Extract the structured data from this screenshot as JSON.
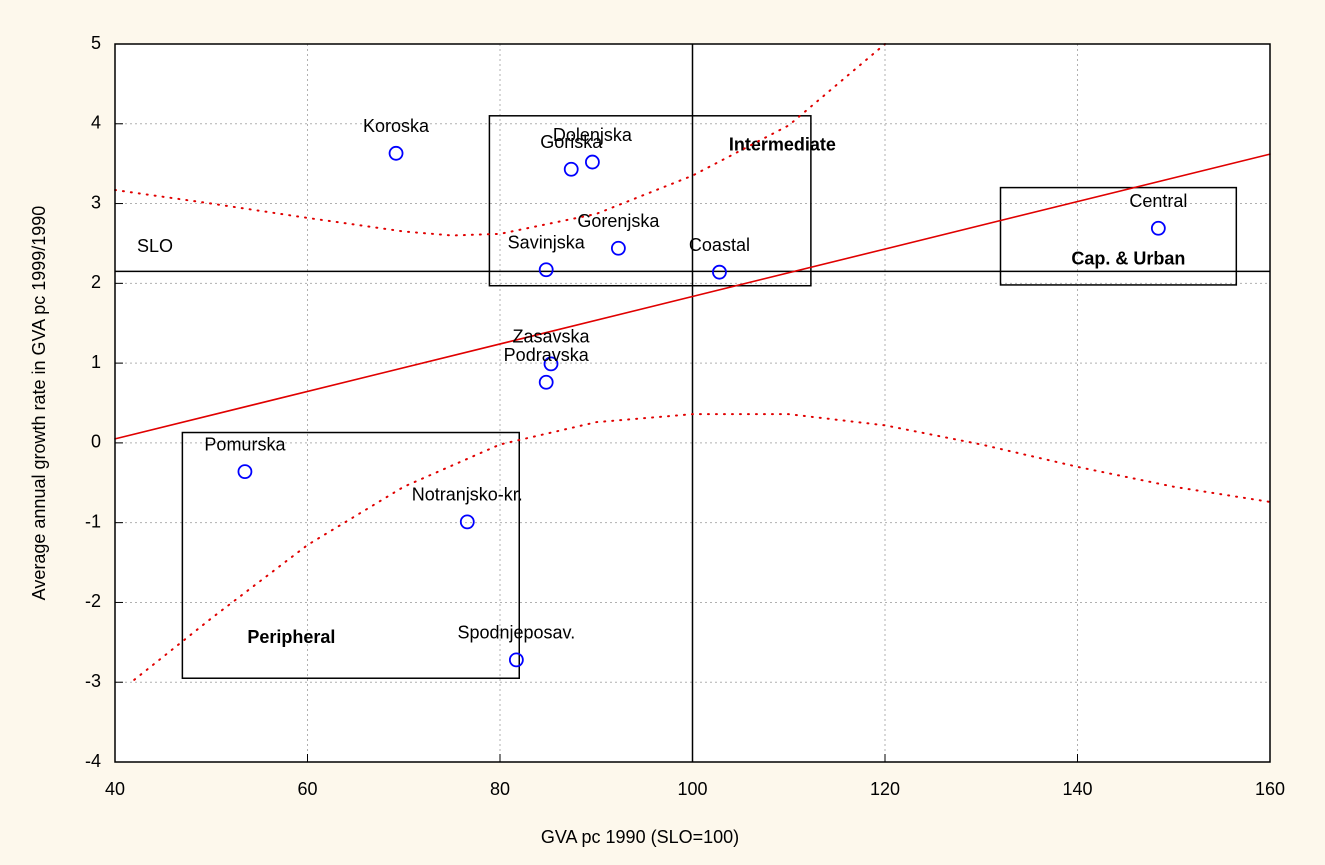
{
  "chart_data": {
    "type": "scatter",
    "x_label": "GVA pc 1990 (SLO=100)",
    "y_label": "Average annual growth rate in GVA pc 1999/1990",
    "xlim": [
      40,
      160
    ],
    "ylim": [
      -4,
      5
    ],
    "xticks": [
      40,
      60,
      80,
      100,
      120,
      140,
      160
    ],
    "yticks": [
      -4,
      -3,
      -2,
      -1,
      0,
      1,
      2,
      3,
      4,
      5
    ],
    "grid": true,
    "points": {
      "color": "#0000ff",
      "labels": [
        "Koroska",
        "Goriska",
        "Dolenjska",
        "Gorenjska",
        "Savinjska",
        "Coastal",
        "Central",
        "Zasavska",
        "Podravska",
        "Pomurska",
        "Notranjsko-kr.",
        "Spodnjeposav."
      ],
      "x": [
        69.2,
        87.4,
        89.6,
        92.3,
        84.8,
        102.8,
        148.4,
        85.3,
        84.8,
        53.5,
        76.6,
        81.7
      ],
      "y": [
        3.63,
        3.43,
        3.52,
        2.44,
        2.17,
        2.14,
        2.69,
        0.99,
        0.76,
        -0.36,
        -0.99,
        -2.72
      ]
    },
    "lines": [
      {
        "style": "solid",
        "color": "#e00000",
        "x": [
          40,
          160
        ],
        "values": [
          0.05,
          3.62
        ]
      },
      {
        "style": "dotted",
        "color": "#e00000",
        "x": [
          40,
          50,
          60,
          70,
          75,
          80,
          90,
          100,
          110,
          120
        ],
        "values": [
          3.17,
          3.0,
          2.82,
          2.65,
          2.6,
          2.62,
          2.87,
          3.35,
          3.98,
          5
        ]
      },
      {
        "style": "dotted",
        "color": "#e00000",
        "x": [
          42,
          50,
          60,
          70,
          80,
          90,
          100,
          110,
          120,
          130,
          140,
          150,
          160
        ],
        "values": [
          -2.97,
          -2.2,
          -1.28,
          -0.55,
          -0.02,
          0.26,
          0.36,
          0.36,
          0.22,
          -0.02,
          -0.3,
          -0.55,
          -0.74
        ]
      }
    ],
    "reference": {
      "label": "SLO",
      "x": 100,
      "y": 2.15
    },
    "regions": [
      {
        "label": "Peripheral",
        "xlim": [
          47,
          82
        ],
        "ylim": [
          -2.95,
          0.13
        ]
      },
      {
        "label": "Intermediate",
        "xlim": [
          78.9,
          112.3
        ],
        "ylim": [
          1.97,
          4.1
        ]
      },
      {
        "label": "Cap. & Urban",
        "xlim": [
          132,
          156.5
        ],
        "ylim": [
          1.98,
          3.2
        ]
      }
    ]
  }
}
